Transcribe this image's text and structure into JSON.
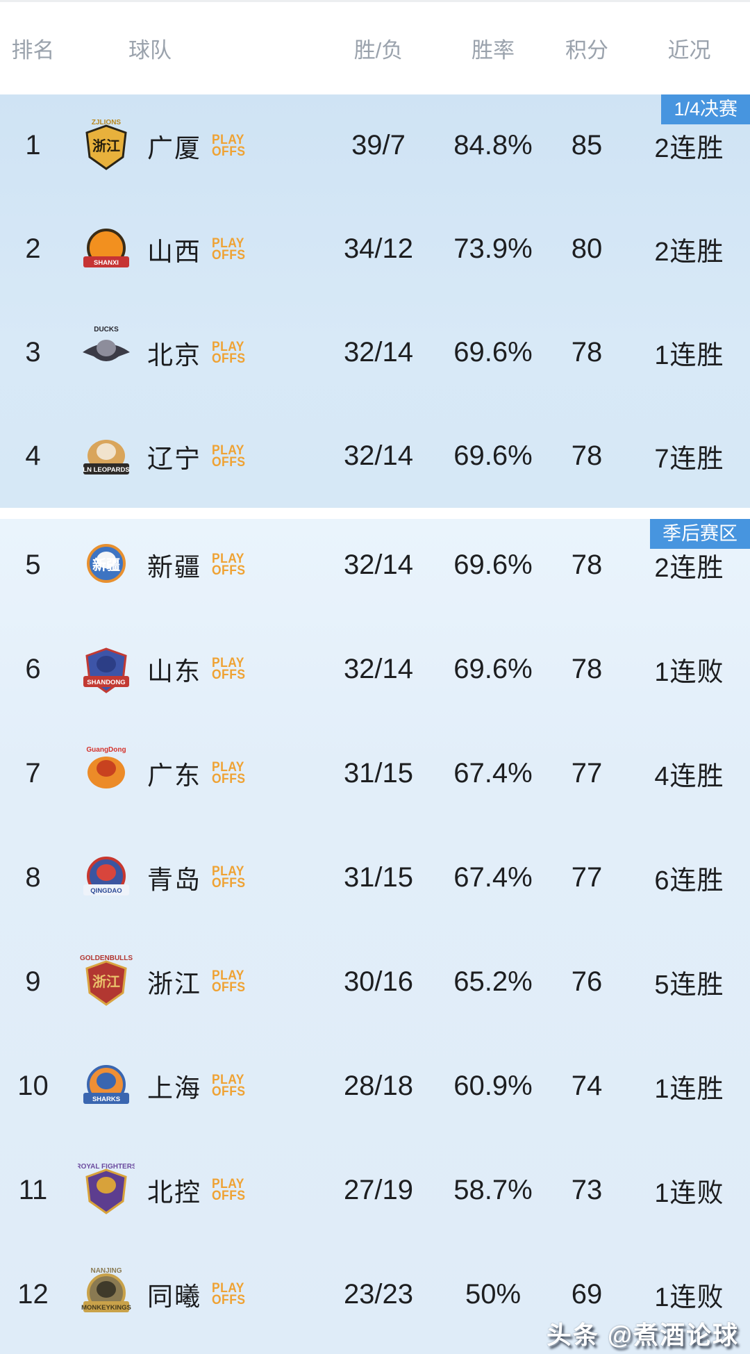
{
  "header": {
    "rank": "排名",
    "team": "球队",
    "wl": "胜/负",
    "pct": "胜率",
    "pts": "积分",
    "form": "近况"
  },
  "playoffs_tag": {
    "line1": "PLAY",
    "line2": "OFFS",
    "color": "#efa233"
  },
  "watermark": "头条 @煮酒论球",
  "colors": {
    "zone_badge_bg": "#4795df",
    "zone_badge_text": "#ffffff",
    "section1_bg": "#d5e8f6",
    "section2_bg": "#e2eef9",
    "stat_text": "#1d1e20",
    "header_text": "#9aa2ac"
  },
  "sections": [
    {
      "badge": "1/4决赛",
      "rows": [
        {
          "rank": "1",
          "name": "广厦",
          "wl": "39/7",
          "pct": "84.8%",
          "pts": "85",
          "form": "2连胜",
          "logo": {
            "shape": "shield",
            "bg": "#e8b13c",
            "ring": "#2a2416",
            "center_text": "浙江",
            "center_text_color": "#241d0d",
            "top_text": "ZJLIONS",
            "top_text_color": "#b9881f"
          }
        },
        {
          "rank": "2",
          "name": "山西",
          "wl": "34/12",
          "pct": "73.9%",
          "pts": "80",
          "form": "2连胜",
          "logo": {
            "shape": "circle",
            "bg": "#f2901f",
            "ring": "#3a2c17",
            "band": "#c63434",
            "band_text": "SHANXI",
            "band_text_color": "#ffffff"
          }
        },
        {
          "rank": "3",
          "name": "北京",
          "wl": "32/14",
          "pct": "69.6%",
          "pts": "78",
          "form": "1连胜",
          "logo": {
            "shape": "wing",
            "bg": "#3b3b46",
            "mascot": "#8d8d9b",
            "top_text": "DUCKS",
            "top_text_color": "#26262e"
          }
        },
        {
          "rank": "4",
          "name": "辽宁",
          "wl": "32/14",
          "pct": "69.6%",
          "pts": "78",
          "form": "7连胜",
          "logo": {
            "shape": "blob",
            "bg": "#d9a55b",
            "mascot": "#f1e3cd",
            "band": "#2e2b28",
            "band_text": "LN LEOPARDS",
            "band_text_color": "#ffffff"
          }
        }
      ]
    },
    {
      "badge": "季后赛区",
      "rows": [
        {
          "rank": "5",
          "name": "新疆",
          "wl": "32/14",
          "pct": "69.6%",
          "pts": "78",
          "form": "2连胜",
          "logo": {
            "shape": "circle",
            "bg": "#3e74c2",
            "ring": "#e8902f",
            "mascot": "#f4f6f8",
            "center_text": "新疆",
            "center_text_color": "#ffffff"
          }
        },
        {
          "rank": "6",
          "name": "山东",
          "wl": "32/14",
          "pct": "69.6%",
          "pts": "78",
          "form": "1连败",
          "logo": {
            "shape": "shield",
            "bg": "#3d55a8",
            "ring": "#c23a33",
            "mascot": "#2c3e86",
            "band": "#c23a33",
            "band_text": "SHANDONG",
            "band_text_color": "#ffffff"
          }
        },
        {
          "rank": "7",
          "name": "广东",
          "wl": "31/15",
          "pct": "67.4%",
          "pts": "77",
          "form": "4连胜",
          "logo": {
            "shape": "blob",
            "bg": "#ec8b28",
            "mascot": "#c8421f",
            "top_text": "GuangDong",
            "top_text_color": "#d4322b"
          }
        },
        {
          "rank": "8",
          "name": "青岛",
          "wl": "31/15",
          "pct": "67.4%",
          "pts": "77",
          "form": "6连胜",
          "logo": {
            "shape": "circle",
            "bg": "#3b55a0",
            "ring": "#c8372f",
            "mascot": "#d8453c",
            "band": "#eef3fa",
            "band_text": "QINGDAO",
            "band_text_color": "#2d4a96"
          }
        },
        {
          "rank": "9",
          "name": "浙江",
          "wl": "30/16",
          "pct": "65.2%",
          "pts": "76",
          "form": "5连胜",
          "logo": {
            "shape": "shield",
            "bg": "#b23731",
            "ring": "#d9a441",
            "center_text": "浙江",
            "center_text_color": "#e9c06a",
            "top_text": "GOLDENBULLS",
            "top_text_color": "#b23731"
          }
        },
        {
          "rank": "10",
          "name": "上海",
          "wl": "28/18",
          "pct": "60.9%",
          "pts": "74",
          "form": "1连胜",
          "logo": {
            "shape": "circle",
            "bg": "#ef8f35",
            "ring": "#3a66b0",
            "mascot": "#3a66b0",
            "band": "#3a66b0",
            "band_text": "SHARKS",
            "band_text_color": "#ffffff"
          }
        },
        {
          "rank": "11",
          "name": "北控",
          "wl": "27/19",
          "pct": "58.7%",
          "pts": "73",
          "form": "1连败",
          "logo": {
            "shape": "shield",
            "bg": "#5d3d8f",
            "ring": "#d8a23a",
            "mascot": "#d8a23a",
            "top_text": "ROYAL FIGHTERS",
            "top_text_color": "#6b4a9e"
          }
        },
        {
          "rank": "12",
          "name": "同曦",
          "wl": "23/23",
          "pct": "50%",
          "pts": "69",
          "form": "1连败",
          "logo": {
            "shape": "circle",
            "bg": "#8a7a52",
            "ring": "#c9a24a",
            "mascot": "#3f3a2a",
            "top_text": "NANJING",
            "top_text_color": "#8a7a52",
            "band": "#c9a24a",
            "band_text": "MONKEYKINGS",
            "band_text_color": "#453a1c"
          }
        }
      ]
    }
  ]
}
